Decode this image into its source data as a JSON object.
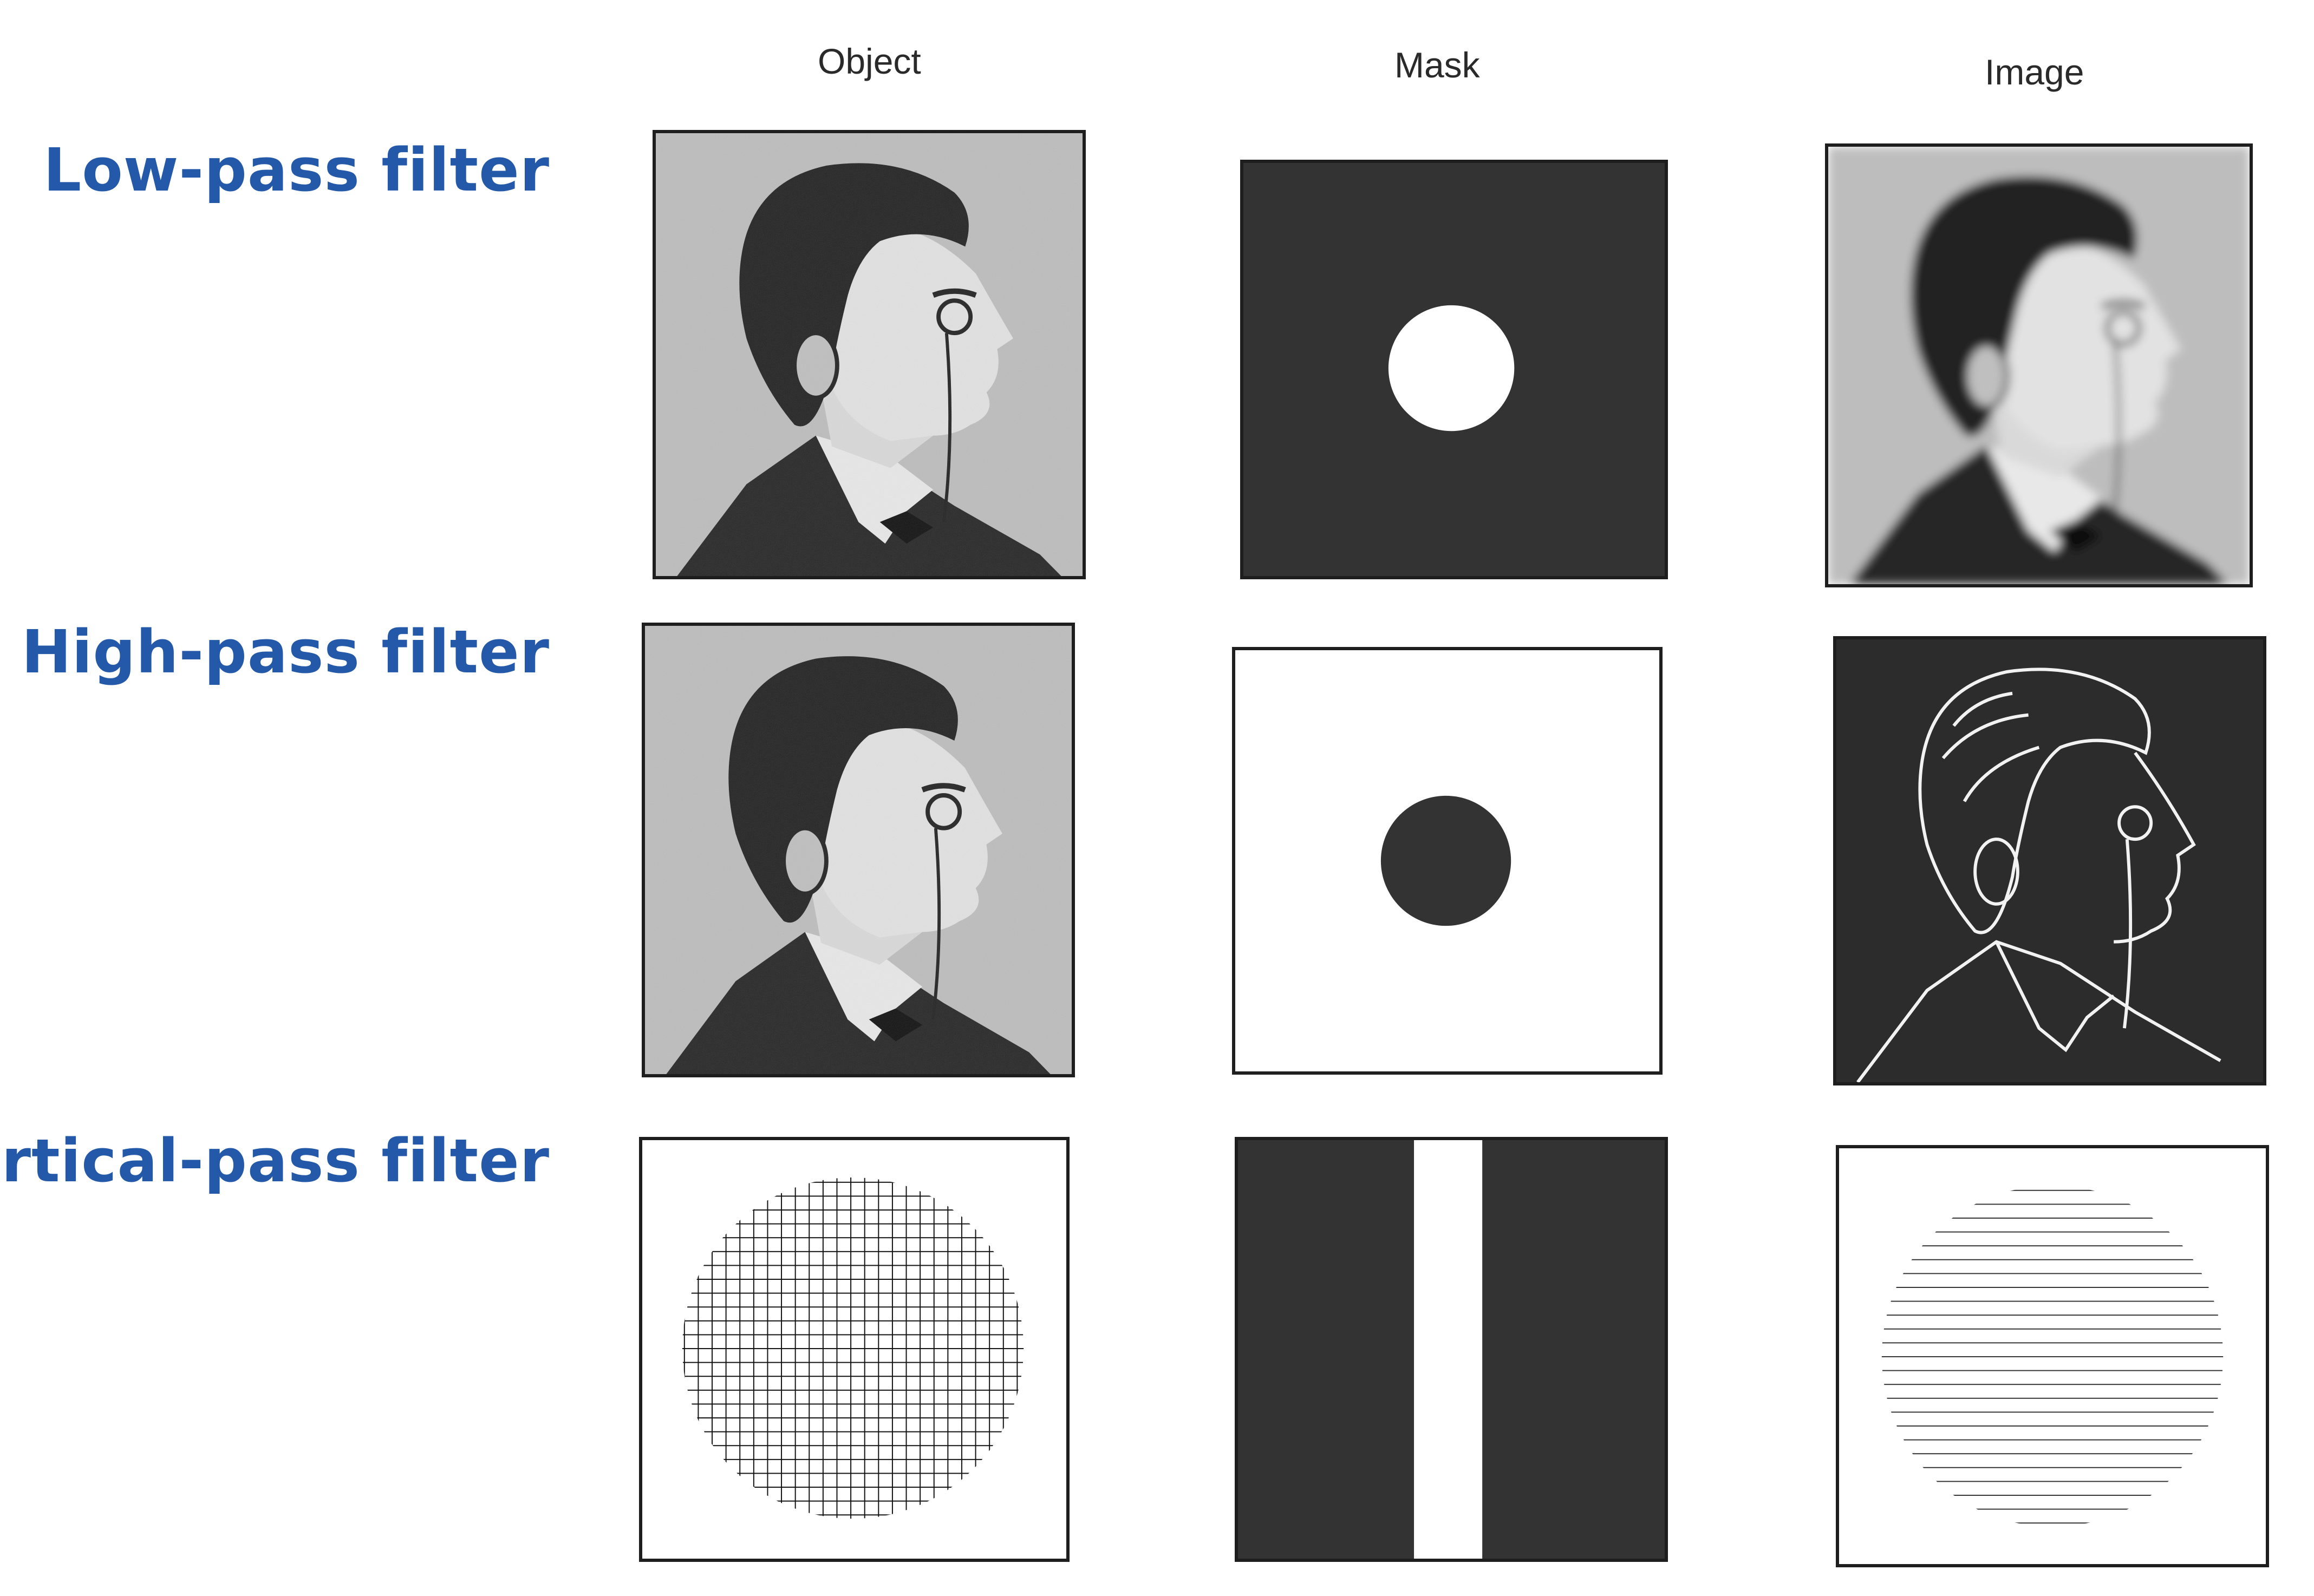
{
  "columns": {
    "object": "Object",
    "mask": "Mask",
    "image": "Image"
  },
  "rows": [
    {
      "label": "Low-pass filter"
    },
    {
      "label": "High-pass filter"
    },
    {
      "label": "Vertical-pass filter"
    }
  ],
  "colors": {
    "label": "#2359a8",
    "mask_dark": "#333333",
    "paper": "#ffffff"
  }
}
